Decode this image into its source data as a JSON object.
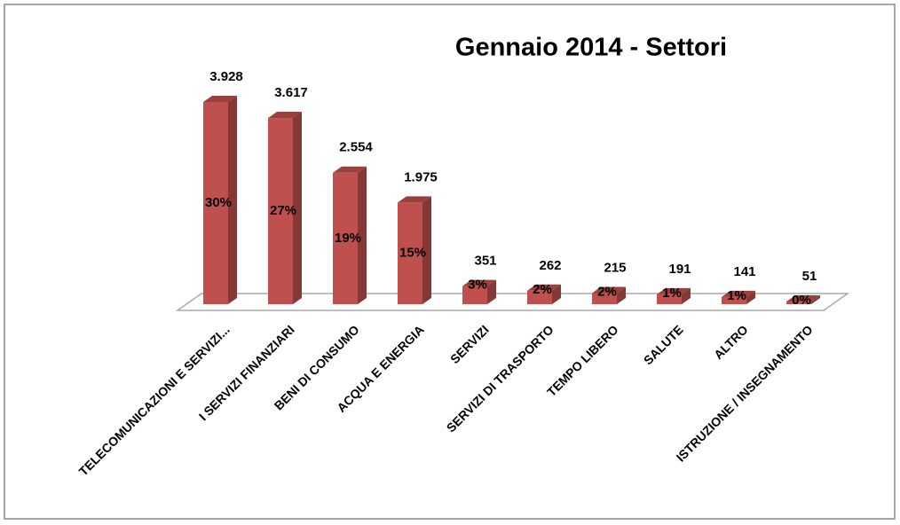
{
  "chart_data": {
    "type": "bar3d",
    "title": "Gennaio 2014 - Settori",
    "categories": [
      "TELECOMUNICAZIONI E SERVIZI...",
      "I SERVIZI FINANZIARI",
      "BENI DI CONSUMO",
      "ACQUA E ENERGIA",
      "SERVIZI",
      "SERVIZI DI TRASPORTO",
      "TEMPO LIBERO",
      "SALUTE",
      "ALTRO",
      "ISTRUZIONE / INSEGNAMENTO"
    ],
    "values": [
      3928,
      3617,
      2554,
      1975,
      351,
      262,
      215,
      191,
      141,
      51
    ],
    "value_labels": [
      "3.928",
      "3.617",
      "2.554",
      "1.975",
      "351",
      "262",
      "215",
      "191",
      "141",
      "51"
    ],
    "shares": [
      30,
      27,
      19,
      15,
      3,
      2,
      2,
      1,
      1,
      0
    ],
    "share_labels": [
      "30%",
      "27%",
      "19%",
      "15%",
      "3%",
      "2%",
      "2%",
      "1%",
      "1%",
      "0%"
    ],
    "color": "#c0504d"
  }
}
